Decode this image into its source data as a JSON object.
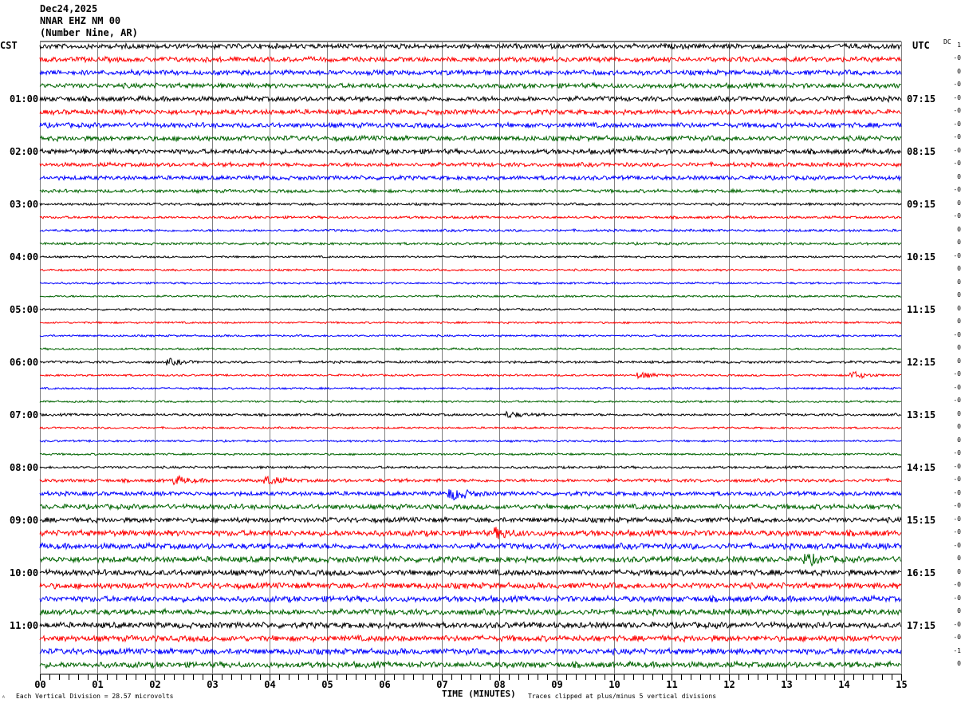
{
  "header": {
    "date": "Dec24,2025",
    "station": "NNAR EHZ NM 00",
    "location": "(Number Nine, AR)"
  },
  "left_axis_title": "CST",
  "right_axis_title": "UTC",
  "dc_title": "DC",
  "left_time_labels": [
    "01:00",
    "02:00",
    "03:00",
    "04:00",
    "05:00",
    "06:00",
    "07:00",
    "08:00",
    "09:00",
    "10:00",
    "11:00"
  ],
  "right_time_labels": [
    "07:15",
    "08:15",
    "09:15",
    "10:15",
    "11:15",
    "12:15",
    "13:15",
    "14:15",
    "15:15",
    "16:15",
    "17:15"
  ],
  "dc_offsets": [
    "1",
    "-0",
    "0",
    "-0",
    "-0",
    "-0",
    "-0",
    "-0",
    "-0",
    "-0",
    "0",
    "-0",
    "0",
    "-0",
    "0",
    "0",
    "-0",
    "0",
    "0",
    "0",
    "0",
    "0",
    "-0",
    "0",
    "0",
    "-0",
    "-0",
    "-0",
    "0",
    "0",
    "0",
    "-0",
    "-0",
    "-0",
    "-0",
    "-0",
    "-0",
    "-0",
    "-0",
    "0",
    "0",
    "-0",
    "-0",
    "0",
    "-0",
    "-0",
    "-1",
    "0"
  ],
  "footer": {
    "scale_note": "Each Vertical Division =   28.57 microvolts",
    "x_axis_title": "TIME (MINUTES)",
    "clip_note": "Traces clipped at plus/minus 5 vertical divisions"
  },
  "chart_data": {
    "type": "line",
    "title": "",
    "xlabel": "TIME (MINUTES)",
    "x_ticks": [
      "00",
      "01",
      "02",
      "03",
      "04",
      "05",
      "06",
      "07",
      "08",
      "09",
      "10",
      "11",
      "12",
      "13",
      "14",
      "15"
    ],
    "xlim": [
      0,
      15
    ],
    "minor_ticks_per_minute": 6,
    "grid": "vertical lines each minute",
    "trace_count": 48,
    "minutes_per_trace": 15,
    "trace_colors": [
      "#000000",
      "#ff0000",
      "#0000ff",
      "#006400"
    ],
    "noise_level_by_trace": [
      3,
      3,
      3,
      3,
      3,
      3,
      3,
      3,
      3,
      2.5,
      2.5,
      2,
      1.5,
      1.5,
      1.5,
      1.5,
      1.2,
      1.2,
      1.2,
      1.2,
      1.2,
      1.2,
      1.2,
      1.2,
      1.5,
      1.2,
      1.2,
      1.2,
      1.5,
      1.2,
      1.2,
      1.2,
      1.5,
      2,
      2.5,
      3,
      3,
      3.5,
      3.5,
      3.5,
      3.5,
      3.5,
      3.5,
      3.5,
      3.5,
      3.5,
      3.5,
      3.5
    ],
    "events": [
      {
        "trace": 25,
        "minute": 14.2,
        "amplitude": 4
      },
      {
        "trace": 24,
        "minute": 2.3,
        "amplitude": 3
      },
      {
        "trace": 25,
        "minute": 10.5,
        "amplitude": 3
      },
      {
        "trace": 28,
        "minute": 8.2,
        "amplitude": 3
      },
      {
        "trace": 33,
        "minute": 2.4,
        "amplitude": 4
      },
      {
        "trace": 33,
        "minute": 4.0,
        "amplitude": 4
      },
      {
        "trace": 34,
        "minute": 7.2,
        "amplitude": 9
      },
      {
        "trace": 37,
        "minute": 8.0,
        "amplitude": 5
      },
      {
        "trace": 39,
        "minute": 13.4,
        "amplitude": 5
      }
    ]
  }
}
